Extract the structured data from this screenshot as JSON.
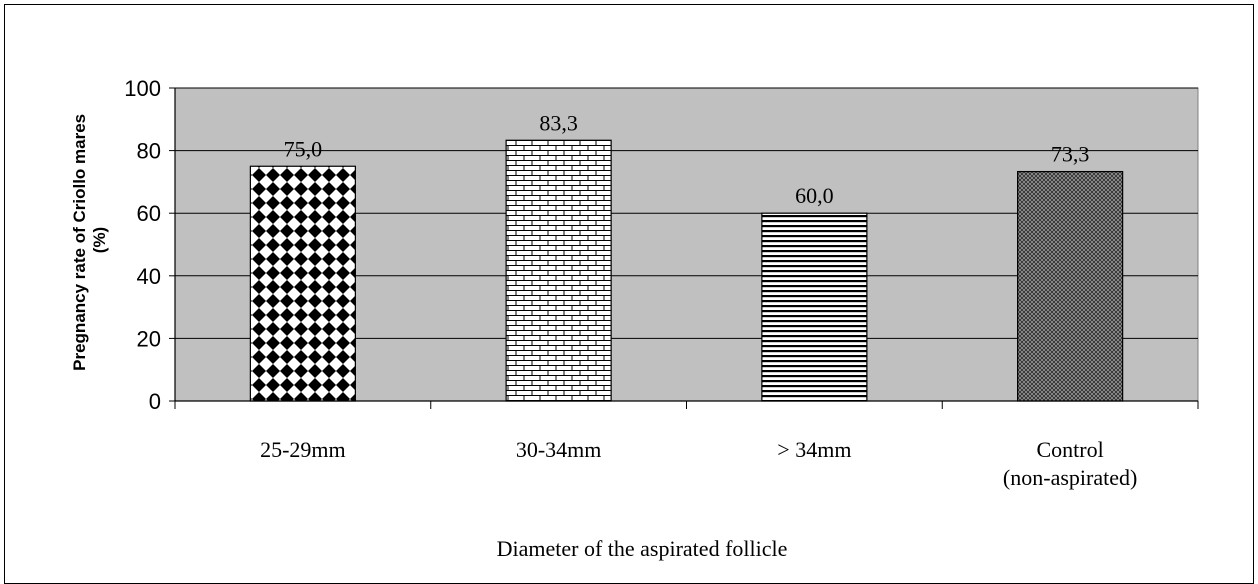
{
  "chart_data": {
    "type": "bar",
    "categories": [
      "25-29mm",
      "30-34mm",
      "> 34mm",
      "Control\n(non-aspirated)"
    ],
    "values": [
      75.0,
      83.3,
      60.0,
      73.3
    ],
    "data_labels": [
      "75,0",
      "83,3",
      "60,0",
      "73,3"
    ],
    "xlabel": "Diameter of the aspirated follicle",
    "ylabel": [
      "Pregnancy rate of Criollo mares",
      "(%)"
    ],
    "ylim": [
      0,
      100
    ],
    "yticks": [
      0,
      20,
      40,
      60,
      80,
      100
    ],
    "grid": true,
    "legend": "none",
    "colors": {
      "plot_background": "#c0c0c0",
      "bar_fill": "#ffffff",
      "bar_pattern": "#000000",
      "gridline": "#000000"
    },
    "bar_patterns": [
      "diamond-check",
      "brick",
      "horizontal-stripes",
      "fine-crosshatch"
    ]
  }
}
